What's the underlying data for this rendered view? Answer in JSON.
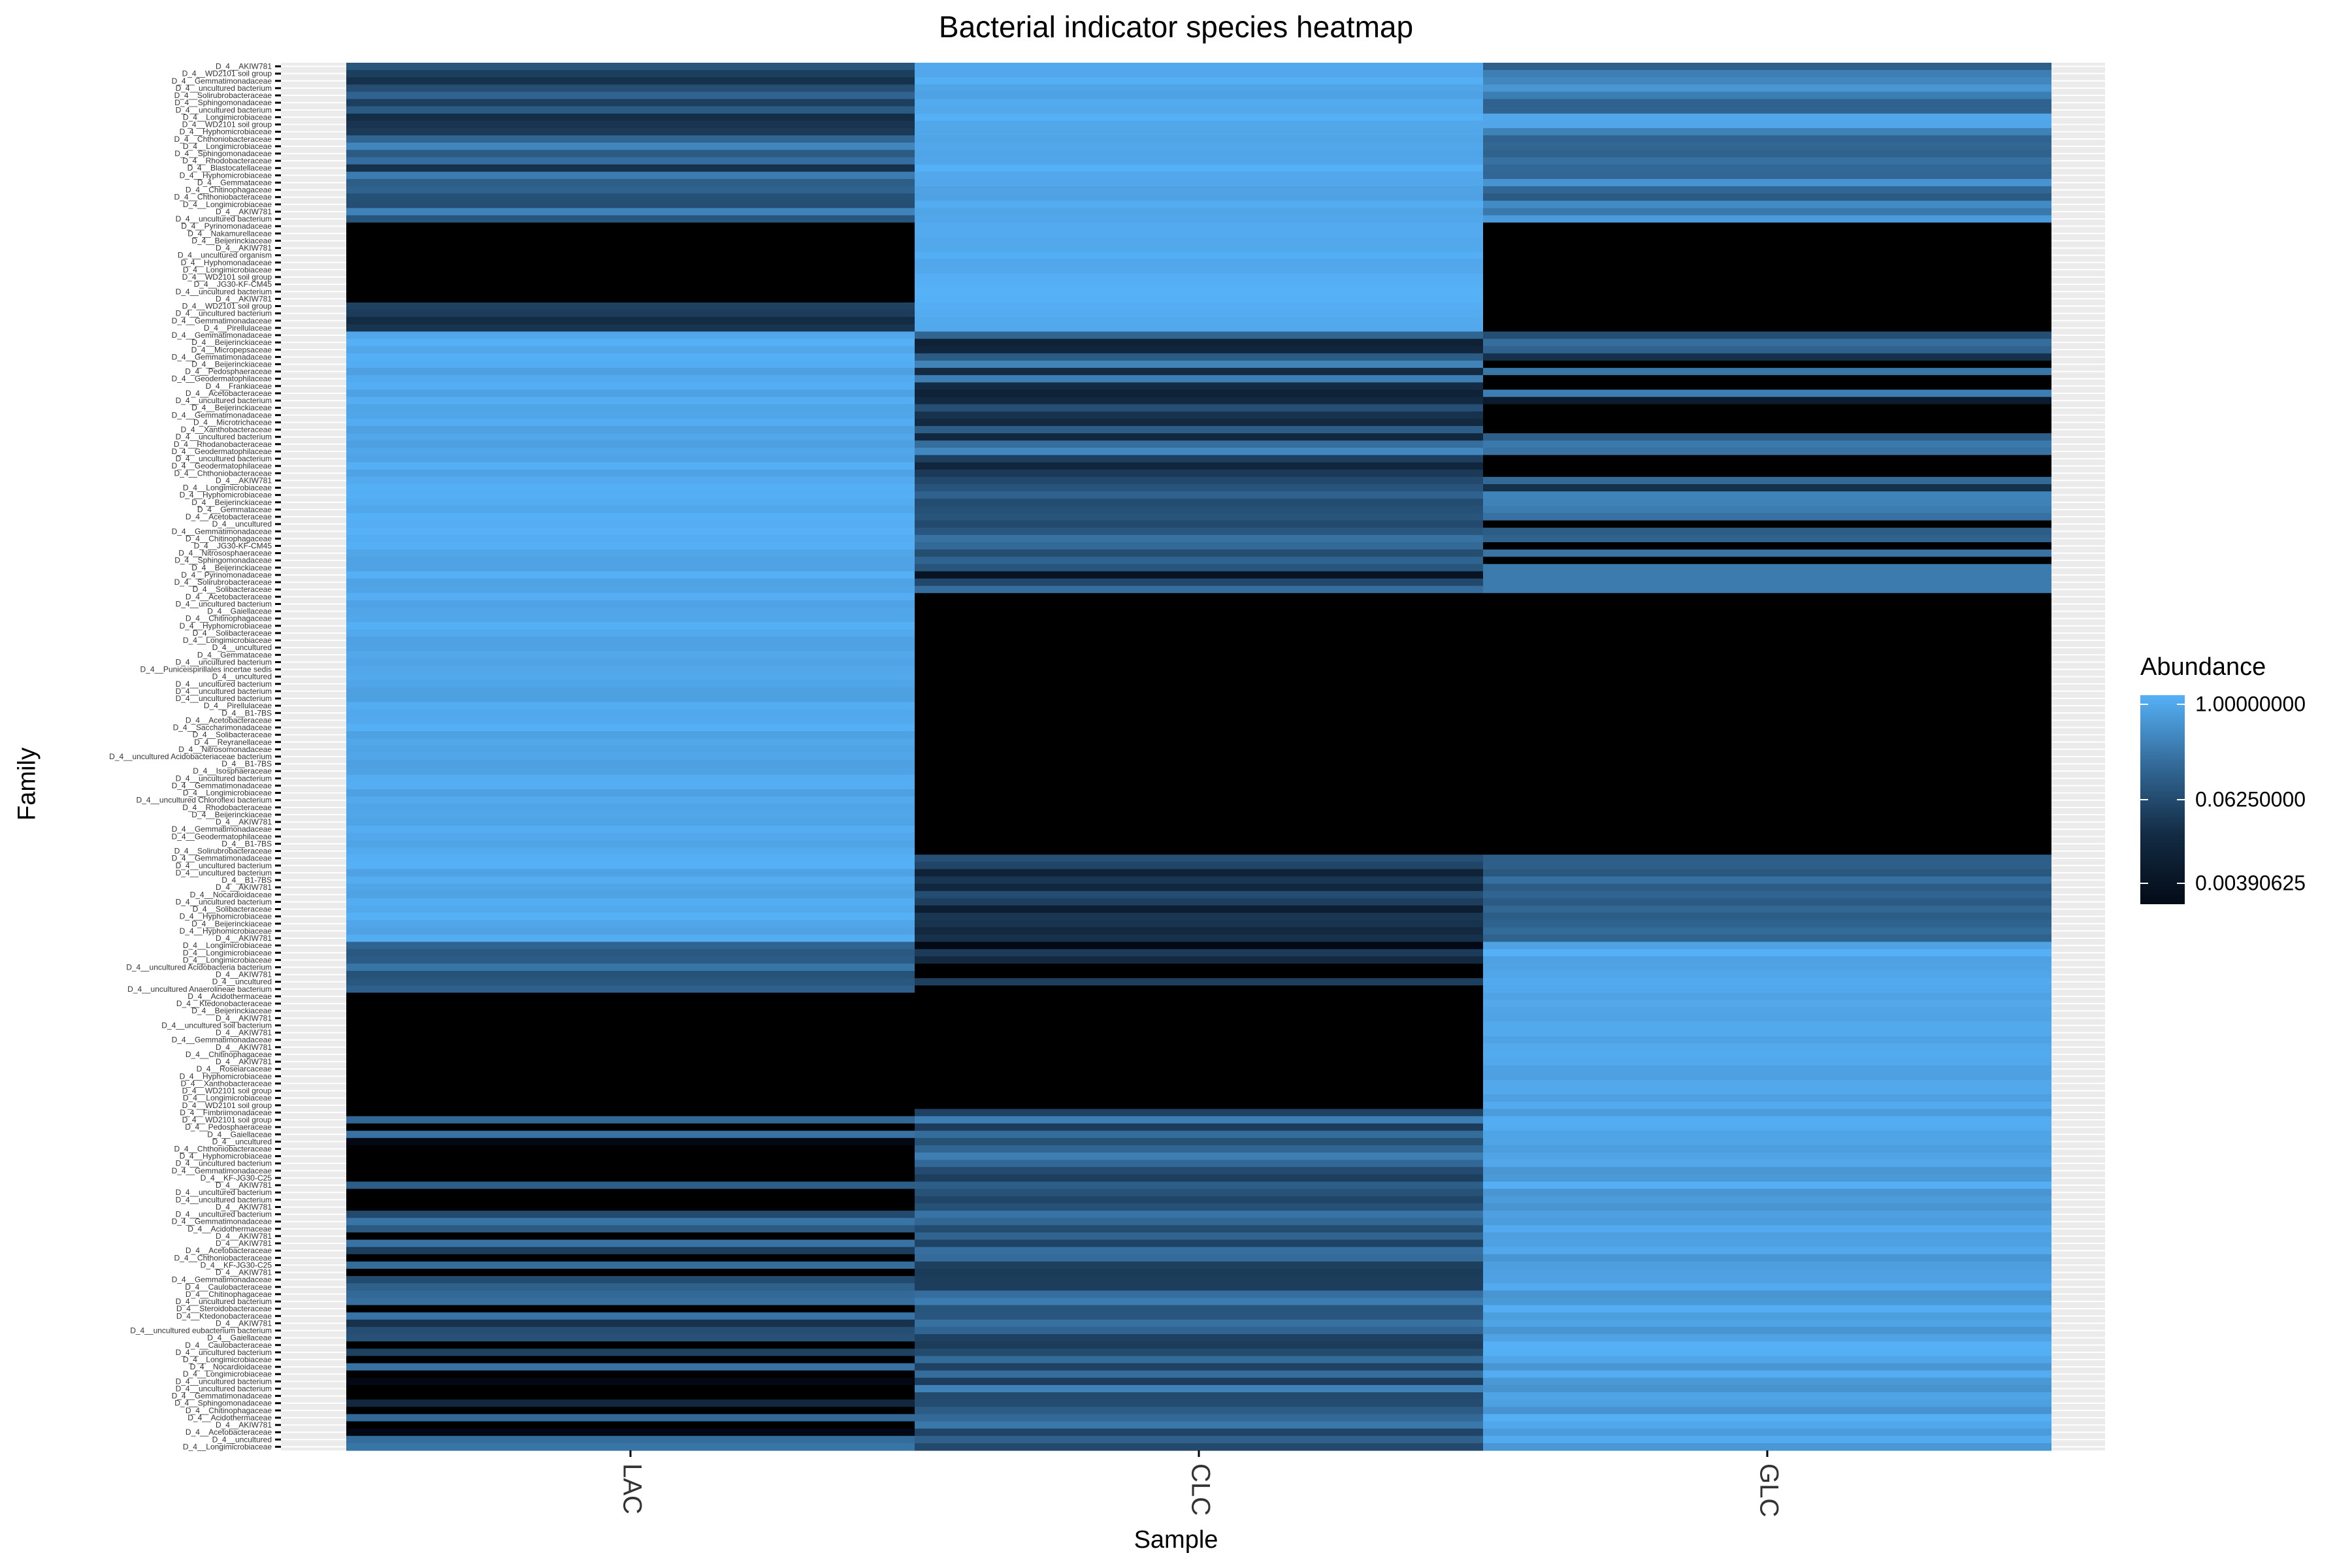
{
  "chart_data": {
    "type": "heatmap",
    "title": "Bacterial indicator species heatmap",
    "xlabel": "Sample",
    "ylabel": "Family",
    "x": [
      "LAC",
      "CLC",
      "GLC"
    ],
    "legend": {
      "title": "Abundance",
      "position": "right",
      "scale": "log2",
      "ticks": [
        1.0,
        0.0625,
        0.00390625
      ],
      "tick_labels": [
        "1.00000000",
        "0.06250000",
        "0.00390625"
      ]
    },
    "colors": {
      "high": "#56b1f7",
      "low": "#000000",
      "panel": "#ebebeb",
      "grid": "#ffffff"
    },
    "row_labels": [
      "D_4__AKIW781",
      "D_4__WD2101 soil group",
      "D_4__Gemmatimonadaceae",
      "D_4__uncultured bacterium",
      "D_4__Solirubrobacteraceae",
      "D_4__Sphingomonadaceae",
      "D_4__uncultured bacterium",
      "D_4__Longimicrobiaceae",
      "D_4__WD2101 soil group",
      "D_4__Hyphomicrobiaceae",
      "D_4__Chthoniobacteraceae",
      "D_4__Longimicrobiaceae",
      "D_4__Sphingomonadaceae",
      "D_4__Rhodobacteraceae",
      "D_4__Blastocatellaceae",
      "D_4__Hyphomicrobiaceae",
      "D_4__Gemmataceae",
      "D_4__Chitinophagaceae",
      "D_4__Chthoniobacteraceae",
      "D_4__Longimicrobiaceae",
      "D_4__AKIW781",
      "D_4__uncultured bacterium",
      "D_4__Pyrinomonadaceae",
      "D_4__Nakamurellaceae",
      "D_4__Beijerinckiaceae",
      "D_4__AKIW781",
      "D_4__uncultured organism",
      "D_4__Hyphomonadaceae",
      "D_4__Longimicrobiaceae",
      "D_4__WD2101 soil group",
      "D_4__JG30-KF-CM45",
      "D_4__uncultured bacterium",
      "D_4__AKIW781",
      "D_4__WD2101 soil group",
      "D_4__uncultured bacterium",
      "D_4__Gemmatimonadaceae",
      "D_4__Pirellulaceae",
      "D_4__Gemmatimonadaceae",
      "D_4__Beijerinckiaceae",
      "D_4__Micropepsaceae",
      "D_4__Gemmatimonadaceae",
      "D_4__Beijerinckiaceae",
      "D_4__Pedosphaeraceae",
      "D_4__Geodermatophilaceae",
      "D_4__Frankiaceae",
      "D_4__Acetobacteraceae",
      "D_4__uncultured bacterium",
      "D_4__Beijerinckiaceae",
      "D_4__Gemmatimonadaceae",
      "D_4__Microtrichaceae",
      "D_4__Xanthobacteraceae",
      "D_4__uncultured bacterium",
      "D_4__Rhodanobacteraceae",
      "D_4__Geodermatophilaceae",
      "D_4__uncultured bacterium",
      "D_4__Geodermatophilaceae",
      "D_4__Chthoniobacteraceae",
      "D_4__AKIW781",
      "D_4__Longimicrobiaceae",
      "D_4__Hyphomicrobiaceae",
      "D_4__Beijerinckiaceae",
      "D_4__Gemmataceae",
      "D_4__Acetobacteraceae",
      "D_4__uncultured",
      "D_4__Gemmatimonadaceae",
      "D_4__Chitinophagaceae",
      "D_4__JG30-KF-CM45",
      "D_4__Nitrososphaeraceae",
      "D_4__Sphingomonadaceae",
      "D_4__Beijerinckiaceae",
      "D_4__Pyrinomonadaceae",
      "D_4__Solirubrobacteraceae",
      "D_4__Solibacteraceae",
      "D_4__Acetobacteraceae",
      "D_4__uncultured bacterium",
      "D_4__Gaiellaceae",
      "D_4__Chitinophagaceae",
      "D_4__Hyphomicrobiaceae",
      "D_4__Solibacteraceae",
      "D_4__Longimicrobiaceae",
      "D_4__uncultured",
      "D_4__Gemmataceae",
      "D_4__uncultured bacterium",
      "D_4__Puniceispirillales incertae sedis",
      "D_4__uncultured",
      "D_4__uncultured bacterium",
      "D_4__uncultured bacterium",
      "D_4__uncultured bacterium",
      "D_4__Pirellulaceae",
      "D_4__B1-7BS",
      "D_4__Acetobacteraceae",
      "D_4__Saccharimonadaceae",
      "D_4__Solibacteraceae",
      "D_4__Reyranellaceae",
      "D_4__Nitrosomonadaceae",
      "D_4__uncultured Acidobacteriaceae bacterium",
      "D_4__B1-7BS",
      "D_4__Isosphaeraceae",
      "D_4__uncultured bacterium",
      "D_4__Gemmatimonadaceae",
      "D_4__Longimicrobiaceae",
      "D_4__uncultured Chloroflexi bacterium",
      "D_4__Rhodobacteraceae",
      "D_4__Beijerinckiaceae",
      "D_4__AKIW781",
      "D_4__Gemmatimonadaceae",
      "D_4__Geodermatophilaceae",
      "D_4__B1-7BS",
      "D_4__Solirubrobacteraceae",
      "D_4__Gemmatimonadaceae",
      "D_4__uncultured bacterium",
      "D_4__uncultured bacterium",
      "D_4__B1-7BS",
      "D_4__AKIW781",
      "D_4__Nocardioidaceae",
      "D_4__uncultured bacterium",
      "D_4__Solibacteraceae",
      "D_4__Hyphomicrobiaceae",
      "D_4__Beijerinckiaceae",
      "D_4__Hyphomicrobiaceae",
      "D_4__AKIW781",
      "D_4__Longimicrobiaceae",
      "D_4__Longimicrobiaceae",
      "D_4__Longimicrobiaceae",
      "D_4__uncultured Acidobacteria bacterium",
      "D_4__AKIW781",
      "D_4__uncultured",
      "D_4__uncultured Anaerolineae bacterium",
      "D_4__Acidothermaceae",
      "D_4__Ktedonobacteraceae",
      "D_4__Beijerinckiaceae",
      "D_4__AKIW781",
      "D_4__uncultured soil bacterium",
      "D_4__AKIW781",
      "D_4__Gemmatimonadaceae",
      "D_4__AKIW781",
      "D_4__Chitinophagaceae",
      "D_4__AKIW781",
      "D_4__Roseiarcaceae",
      "D_4__Hyphomicrobiaceae",
      "D_4__Xanthobacteraceae",
      "D_4__WD2101 soil group",
      "D_4__Longimicrobiaceae",
      "D_4__WD2101 soil group",
      "D_4__Fimbriimonadaceae",
      "D_4__WD2101 soil group",
      "D_4__Pedosphaeraceae",
      "D_4__Gaiellaceae",
      "D_4__uncultured",
      "D_4__Chthoniobacteraceae",
      "D_4__Hyphomicrobiaceae",
      "D_4__uncultured bacterium",
      "D_4__Gemmatimonadaceae",
      "D_4__KF-JG30-C25",
      "D_4__AKIW781",
      "D_4__uncultured bacterium",
      "D_4__uncultured bacterium",
      "D_4__AKIW781",
      "D_4__uncultured bacterium",
      "D_4__Gemmatimonadaceae",
      "D_4__Acidothermaceae",
      "D_4__AKIW781",
      "D_4__AKIW781",
      "D_4__Acetobacteraceae",
      "D_4__Chthoniobacteraceae",
      "D_4__KF-JG30-C25",
      "D_4__AKIW781",
      "D_4__Gemmatimonadaceae",
      "D_4__Caulobacteraceae",
      "D_4__Chitinophagaceae",
      "D_4__uncultured bacterium",
      "D_4__Steroidobacteraceae",
      "D_4__Ktedonobacteraceae",
      "D_4__AKIW781",
      "D_4__uncultured eubacterium bacterium",
      "D_4__Gaiellaceae",
      "D_4__Caulobacteraceae",
      "D_4__uncultured bacterium",
      "D_4__Longimicrobiaceae",
      "D_4__Nocardioidaceae",
      "D_4__Longimicrobiaceae",
      "D_4__uncultured bacterium",
      "D_4__uncultured bacterium",
      "D_4__Gemmatimonadaceae",
      "D_4__Sphingomonadaceae",
      "D_4__Chitinophagaceae",
      "D_4__Acidothermaceae",
      "D_4__AKIW781",
      "D_4__Acetobacteraceae",
      "D_4__uncultured",
      "D_4__Longimicrobiaceae"
    ],
    "value_blocks": [
      {
        "rows": [
          0,
          21
        ],
        "LAC": [
          0.01,
          0.3
        ],
        "CLC": [
          0.6,
          1.0
        ],
        "GLC": [
          0.06,
          0.8
        ]
      },
      {
        "rows": [
          22,
          32
        ],
        "LAC": [
          0.0,
          0.0
        ],
        "CLC": [
          0.7,
          1.0
        ],
        "GLC": [
          0.0,
          0.0
        ]
      },
      {
        "rows": [
          33,
          36
        ],
        "LAC": [
          0.01,
          0.03
        ],
        "CLC": [
          0.7,
          1.0
        ],
        "GLC": [
          0.0,
          0.0
        ]
      },
      {
        "rows": [
          37,
          68
        ],
        "LAC": [
          0.6,
          1.0
        ],
        "CLC": [
          0.005,
          0.4
        ],
        "GLC": [
          0.0,
          0.3
        ]
      },
      {
        "rows": [
          69,
          72
        ],
        "LAC": [
          0.6,
          1.0
        ],
        "CLC": [
          0.0,
          0.3
        ],
        "GLC": [
          0.2,
          0.2
        ]
      },
      {
        "rows": [
          73,
          108
        ],
        "LAC": [
          0.6,
          1.0
        ],
        "CLC": [
          0.0,
          0.0
        ],
        "GLC": [
          0.0,
          0.0
        ]
      },
      {
        "rows": [
          109,
          120
        ],
        "LAC": [
          0.6,
          1.0
        ],
        "CLC": [
          0.003,
          0.05
        ],
        "GLC": [
          0.05,
          0.15
        ]
      },
      {
        "rows": [
          121,
          127
        ],
        "LAC": [
          0.03,
          0.2
        ],
        "CLC": [
          0.0,
          0.03
        ],
        "GLC": [
          0.6,
          1.0
        ]
      },
      {
        "rows": [
          128,
          143
        ],
        "LAC": [
          0.0,
          0.0
        ],
        "CLC": [
          0.0,
          0.0
        ],
        "GLC": [
          0.6,
          1.0
        ]
      },
      {
        "rows": [
          144,
          204
        ],
        "LAC": [
          0.0,
          0.2
        ],
        "CLC": [
          0.02,
          0.25
        ],
        "GLC": [
          0.4,
          1.0
        ]
      }
    ]
  }
}
